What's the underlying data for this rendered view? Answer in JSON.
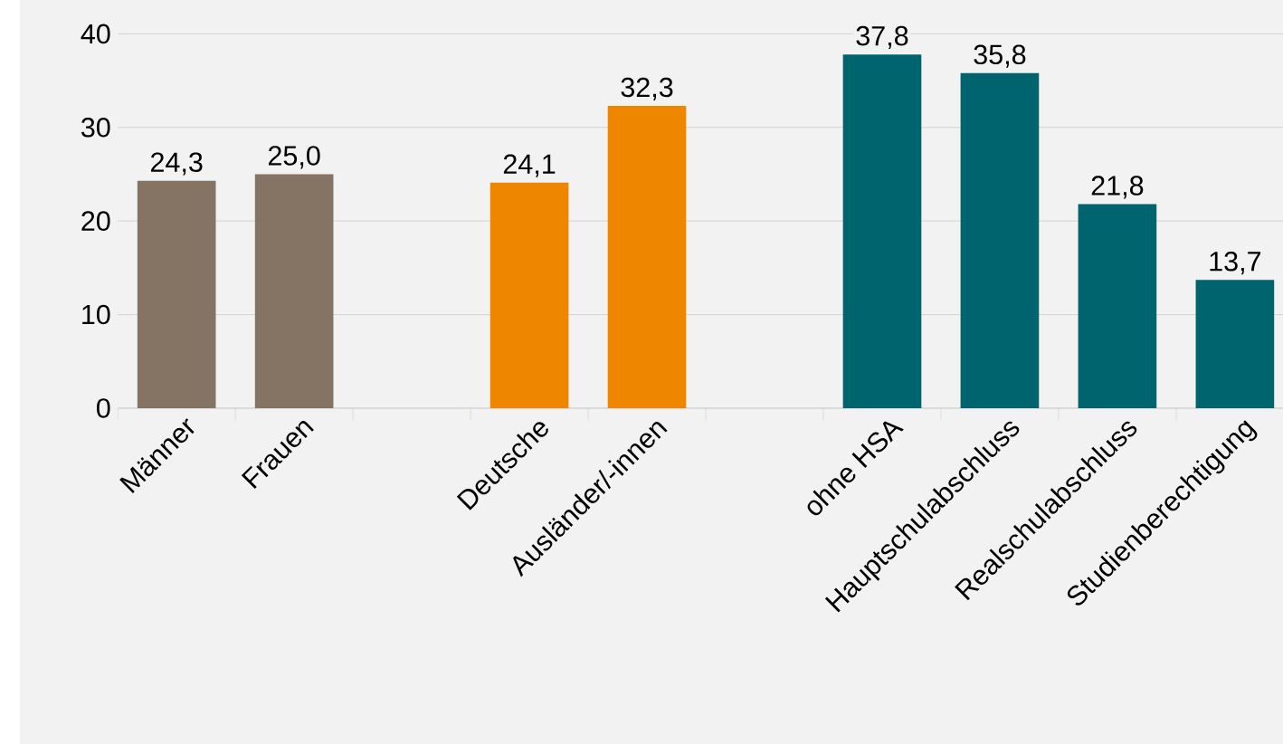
{
  "chart_data": {
    "type": "bar",
    "categories": [
      "Männer",
      "Frauen",
      null,
      "Deutsche",
      "Ausländer/-innen",
      null,
      "ohne HSA",
      "Hauptschulabschluss",
      "Realschulabschluss",
      "Studienberechtigung"
    ],
    "values": [
      24.3,
      25.0,
      null,
      24.1,
      32.3,
      null,
      37.8,
      35.8,
      21.8,
      13.7
    ],
    "value_labels": [
      "24,3",
      "25,0",
      null,
      "24,1",
      "32,3",
      null,
      "37,8",
      "35,8",
      "21,8",
      "13,7"
    ],
    "colors": [
      "#857363",
      "#857363",
      null,
      "#ee8600",
      "#ee8600",
      null,
      "#00646e",
      "#00646e",
      "#00646e",
      "#00646e"
    ],
    "ylim": [
      0,
      40
    ],
    "yticks": [
      0,
      10,
      20,
      30,
      40
    ],
    "grid": "y"
  }
}
